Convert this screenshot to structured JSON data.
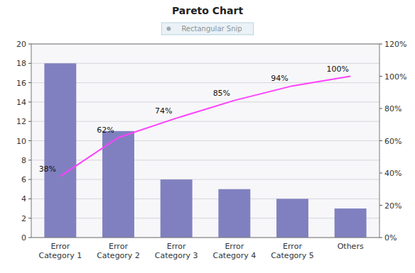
{
  "chart_data": {
    "type": "bar",
    "title": "Pareto Chart",
    "categories": [
      "Error\nCategory 1",
      "Error\nCategory 2",
      "Error\nCategory 3",
      "Error\nCategory 4",
      "Error\nCategory 5",
      "Others"
    ],
    "series": [
      {
        "type": "bar",
        "color": "#8080C0",
        "values": [
          18,
          11,
          6,
          5,
          4,
          3
        ]
      },
      {
        "type": "line",
        "axis": "y2",
        "color": "#FF40FF",
        "data_labels": true,
        "values": [
          38,
          62,
          74,
          85,
          94,
          100
        ],
        "value_labels": [
          "38%",
          "62%",
          "74%",
          "85%",
          "94%",
          "100%"
        ]
      }
    ],
    "ylim": [
      0,
      20
    ],
    "yticks": [
      0,
      2,
      4,
      6,
      8,
      10,
      12,
      14,
      16,
      18,
      20
    ],
    "y2lim": [
      0,
      120
    ],
    "y2ticks": [
      {
        "value": 0,
        "label": "0%"
      },
      {
        "value": 20,
        "label": "20%"
      },
      {
        "value": 40,
        "label": "40%"
      },
      {
        "value": 60,
        "label": "60%"
      },
      {
        "value": 80,
        "label": "80%"
      },
      {
        "value": 100,
        "label": "100%"
      },
      {
        "value": 120,
        "label": "120%"
      }
    ],
    "grid": true,
    "annotations": [
      "Rectangular Snip"
    ]
  }
}
